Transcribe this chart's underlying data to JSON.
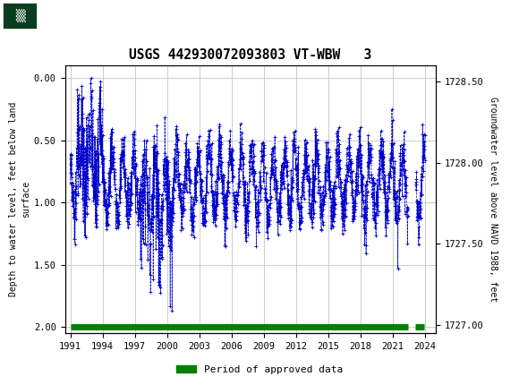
{
  "title": "USGS 442930072093803 VT-WBW   3",
  "ylabel_left": "Depth to water level, feet below land\nsurface",
  "ylabel_right": "Groundwater level above NAVD 1988, feet",
  "ylim_left": [
    2.05,
    -0.1
  ],
  "ylim_right": [
    1726.95,
    1728.6
  ],
  "xlim": [
    1990.5,
    2025.0
  ],
  "yticks_left": [
    0.0,
    0.5,
    1.0,
    1.5,
    2.0
  ],
  "yticks_right": [
    1727.0,
    1727.5,
    1728.0,
    1728.5
  ],
  "xticks": [
    1991,
    1994,
    1997,
    2000,
    2003,
    2006,
    2009,
    2012,
    2015,
    2018,
    2021,
    2024
  ],
  "header_color": "#1a6b3c",
  "data_color": "#0000cc",
  "approved_color": "#008000",
  "background_color": "#ffffff",
  "grid_color": "#cccccc",
  "legend_label": "Period of approved data"
}
